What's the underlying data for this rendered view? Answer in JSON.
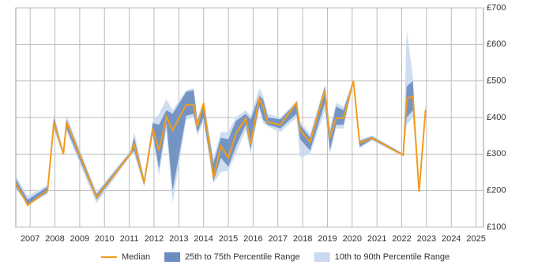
{
  "chart_data": {
    "type": "range-line",
    "x": [
      2006.43,
      2006.9,
      2007.7,
      2007.96,
      2008.34,
      2008.47,
      2009.68,
      2011.05,
      2011.2,
      2011.6,
      2011.95,
      2012.2,
      2012.5,
      2012.75,
      2013.3,
      2013.6,
      2013.75,
      2014.0,
      2014.4,
      2014.7,
      2015.0,
      2015.3,
      2015.7,
      2015.9,
      2016.25,
      2016.4,
      2016.6,
      2017.1,
      2017.75,
      2017.9,
      2018.3,
      2018.9,
      2019.1,
      2019.35,
      2019.65,
      2020.05,
      2020.3,
      2020.8,
      2022.06,
      2022.2,
      2022.45,
      2022.7,
      2022.96
    ],
    "bands": [
      {
        "name": "10th to 90th Percentile Range",
        "color": "#c9d9ee",
        "lower": [
          205,
          160,
          190,
          365,
          295,
          360,
          165,
          295,
          300,
          210,
          350,
          240,
          370,
          165,
          395,
          400,
          350,
          390,
          220,
          250,
          255,
          300,
          365,
          300,
          425,
          385,
          375,
          360,
          400,
          290,
          300,
          420,
          300,
          370,
          370,
          495,
          315,
          338,
          293,
          380,
          400,
          197,
          400
        ],
        "upper": [
          240,
          185,
          215,
          410,
          310,
          405,
          195,
          310,
          360,
          235,
          390,
          410,
          450,
          420,
          475,
          480,
          400,
          445,
          290,
          360,
          360,
          400,
          420,
          405,
          480,
          460,
          410,
          400,
          445,
          390,
          355,
          490,
          370,
          440,
          430,
          505,
          340,
          350,
          302,
          640,
          510,
          197,
          440
        ]
      },
      {
        "name": "25th to 75th Percentile Range",
        "color": "#6a8dbf",
        "lower": [
          210,
          160,
          195,
          375,
          298,
          370,
          175,
          298,
          310,
          215,
          355,
          260,
          385,
          200,
          405,
          410,
          360,
          400,
          225,
          290,
          265,
          320,
          380,
          315,
          430,
          395,
          380,
          370,
          410,
          340,
          310,
          440,
          310,
          380,
          380,
          500,
          320,
          340,
          295,
          400,
          420,
          197,
          410
        ],
        "upper": [
          230,
          175,
          210,
          400,
          305,
          395,
          190,
          305,
          345,
          230,
          385,
          380,
          420,
          410,
          470,
          475,
          390,
          440,
          275,
          345,
          340,
          390,
          410,
          395,
          460,
          450,
          400,
          395,
          440,
          380,
          345,
          485,
          355,
          430,
          420,
          500,
          335,
          348,
          300,
          485,
          500,
          197,
          430
        ]
      }
    ],
    "series": [
      {
        "name": "Median",
        "color": "#f39c1d",
        "values": [
          220,
          160,
          200,
          387,
          300,
          387,
          182,
          300,
          327,
          221,
          370,
          310,
          402,
          365,
          435,
          435,
          375,
          440,
          235,
          322,
          290,
          355,
          398,
          327,
          452,
          430,
          387,
          380,
          440,
          365,
          333,
          474,
          344,
          398,
          398,
          500,
          330,
          344,
          297,
          452,
          458,
          197,
          420
        ]
      }
    ],
    "xlim": [
      2006.42,
      2025.3
    ],
    "xticks": [
      2007,
      2008,
      2009,
      2010,
      2011,
      2012,
      2013,
      2014,
      2015,
      2016,
      2017,
      2018,
      2019,
      2020,
      2021,
      2022,
      2023,
      2024,
      2025
    ],
    "ylim": [
      100,
      700
    ],
    "yticks": [
      {
        "value": 100,
        "label": "£100"
      },
      {
        "value": 200,
        "label": "£200"
      },
      {
        "value": 300,
        "label": "£300"
      },
      {
        "value": 400,
        "label": "£400"
      },
      {
        "value": 500,
        "label": "£500"
      },
      {
        "value": 600,
        "label": "£600"
      },
      {
        "value": 700,
        "label": "£700"
      }
    ],
    "grid": true
  }
}
